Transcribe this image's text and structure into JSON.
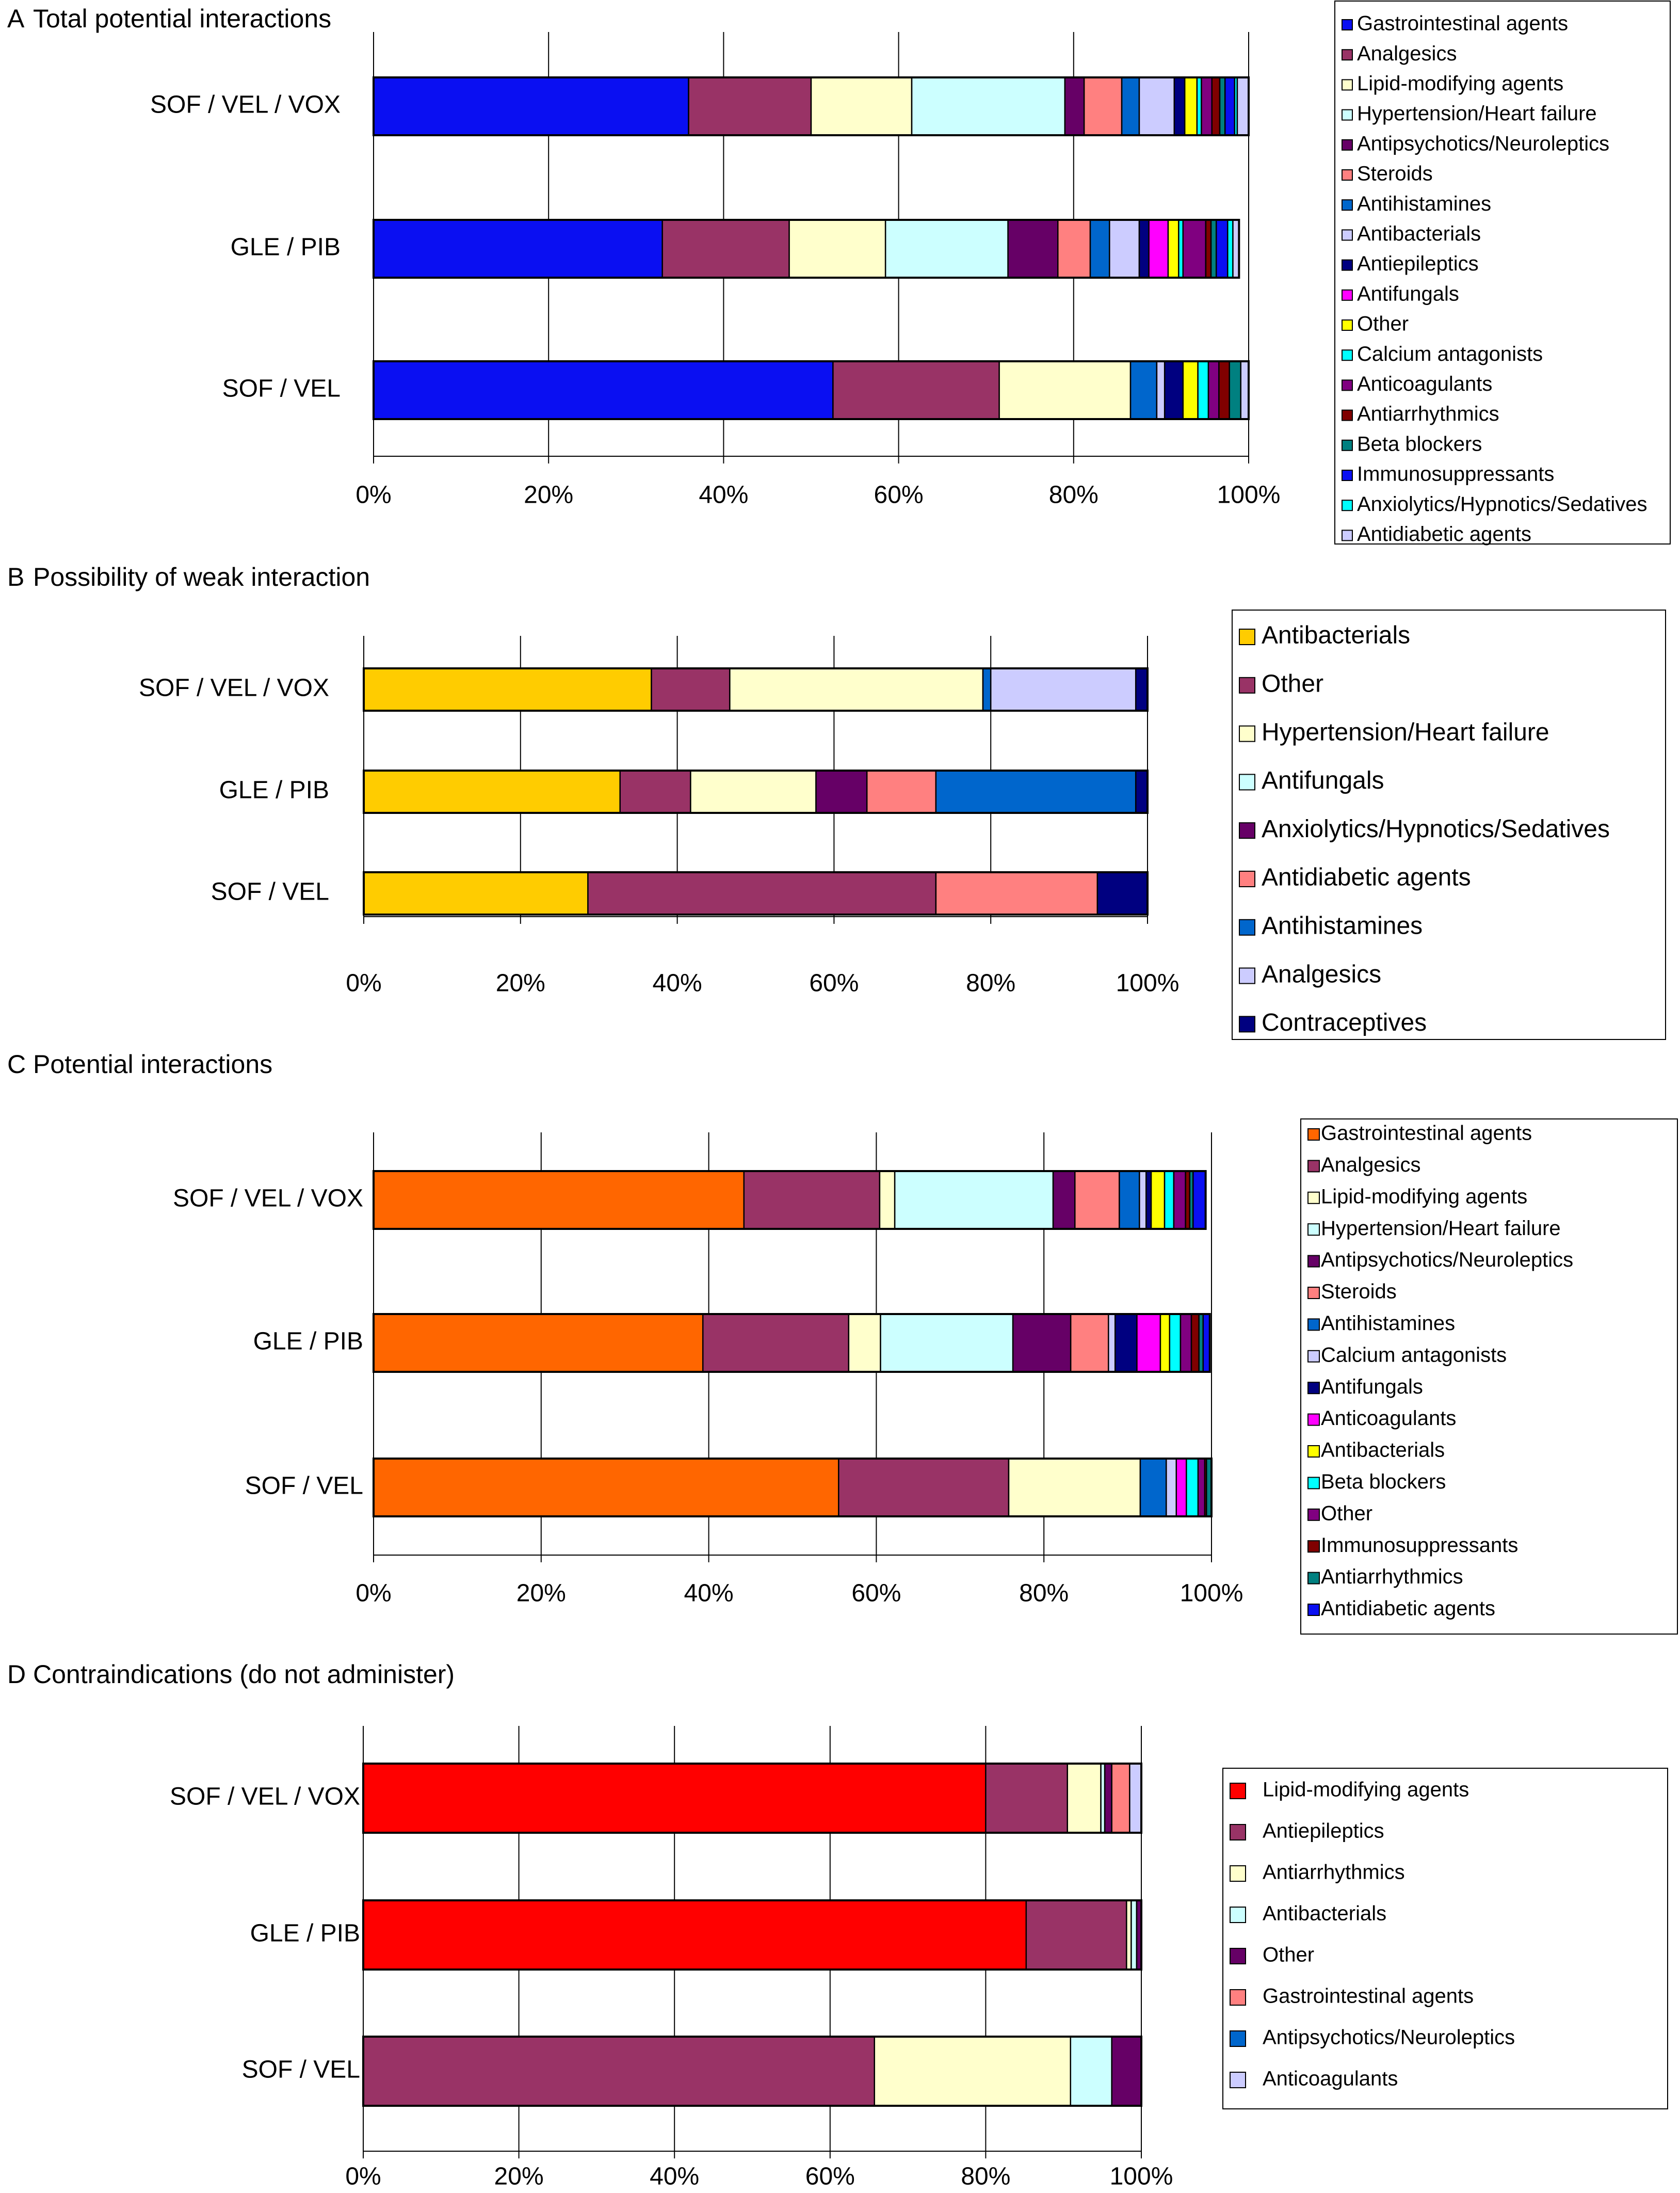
{
  "colors": {
    "blue": "#0a0ff2",
    "maroon": "#993366",
    "cream": "#ffffcc",
    "ltcyan": "#ccffff",
    "purple": "#660066",
    "salmon": "#ff8080",
    "medblue": "#0066cc",
    "lavender": "#ccccff",
    "navy": "#000080",
    "magenta": "#ff00ff",
    "yellow": "#ffff00",
    "cyan": "#00ffff",
    "plum": "#800080",
    "darkred": "#800000",
    "teal": "#008080",
    "gold": "#ffcc00",
    "orange": "#ff6600",
    "red": "#ff0000"
  },
  "chart_data": [
    {
      "panel_letter": "A",
      "title": "Total potential interactions",
      "type": "bar",
      "stacked": true,
      "orientation": "horizontal",
      "xlim": [
        0,
        100
      ],
      "xticks": [
        "0%",
        "20%",
        "40%",
        "60%",
        "80%",
        "100%"
      ],
      "categories": [
        "SOF / VEL / VOX",
        "GLE / PIB",
        "SOF / VEL"
      ],
      "legend": [
        {
          "label": "Gastrointestinal agents",
          "color": "blue"
        },
        {
          "label": "Analgesics",
          "color": "maroon"
        },
        {
          "label": "Lipid-modifying agents",
          "color": "cream"
        },
        {
          "label": "Hypertension/Heart failure",
          "color": "ltcyan"
        },
        {
          "label": "Antipsychotics/Neuroleptics",
          "color": "purple"
        },
        {
          "label": "Steroids",
          "color": "salmon"
        },
        {
          "label": "Antihistamines",
          "color": "medblue"
        },
        {
          "label": "Antibacterials",
          "color": "lavender"
        },
        {
          "label": "Antiepileptics",
          "color": "navy"
        },
        {
          "label": "Antifungals",
          "color": "magenta"
        },
        {
          "label": "Other",
          "color": "yellow"
        },
        {
          "label": "Calcium antagonists",
          "color": "cyan"
        },
        {
          "label": "Anticoagulants",
          "color": "plum"
        },
        {
          "label": "Antiarrhythmics",
          "color": "darkred"
        },
        {
          "label": "Beta blockers",
          "color": "teal"
        },
        {
          "label": "Immunosuppressants",
          "color": "blue"
        },
        {
          "label": "Anxiolytics/Hypnotics/Sedatives",
          "color": "cyan"
        },
        {
          "label": "Antidiabetic agents",
          "color": "lavender"
        }
      ],
      "series": [
        {
          "name": "Gastrointestinal agents",
          "color": "blue",
          "values": [
            36,
            33,
            52.5
          ]
        },
        {
          "name": "Analgesics",
          "color": "maroon",
          "values": [
            14,
            14.5,
            19
          ]
        },
        {
          "name": "Lipid-modifying agents",
          "color": "cream",
          "values": [
            11.5,
            11,
            15
          ]
        },
        {
          "name": "Hypertension/Heart failure",
          "color": "ltcyan",
          "values": [
            17.5,
            14,
            0
          ]
        },
        {
          "name": "Antipsychotics/Neuroleptics",
          "color": "purple",
          "values": [
            2.2,
            5.7,
            0
          ]
        },
        {
          "name": "Steroids",
          "color": "salmon",
          "values": [
            4.3,
            3.7,
            0
          ]
        },
        {
          "name": "Antihistamines",
          "color": "medblue",
          "values": [
            2,
            2.2,
            3
          ]
        },
        {
          "name": "Antibacterials",
          "color": "lavender",
          "values": [
            4,
            3.4,
            0.9
          ]
        },
        {
          "name": "Antiepileptics",
          "color": "navy",
          "values": [
            1.2,
            1.1,
            2.1
          ]
        },
        {
          "name": "Antifungals",
          "color": "magenta",
          "values": [
            0,
            2.2,
            0
          ]
        },
        {
          "name": "Other",
          "color": "yellow",
          "values": [
            1.4,
            1.2,
            1.7
          ]
        },
        {
          "name": "Calcium antagonists",
          "color": "cyan",
          "values": [
            0.5,
            0.5,
            1.2
          ]
        },
        {
          "name": "Anticoagulants",
          "color": "plum",
          "values": [
            1.2,
            2.6,
            1.2
          ]
        },
        {
          "name": "Antiarrhythmics",
          "color": "darkred",
          "values": [
            0.9,
            0.6,
            1.2
          ]
        },
        {
          "name": "Beta blockers",
          "color": "teal",
          "values": [
            0.6,
            0.6,
            1.3
          ]
        },
        {
          "name": "Immunosuppressants",
          "color": "blue",
          "values": [
            1.1,
            1.3,
            0
          ]
        },
        {
          "name": "Anxiolytics/Hypnotics/Sedatives",
          "color": "cyan",
          "values": [
            0.3,
            0.6,
            0
          ]
        },
        {
          "name": "Antidiabetic agents",
          "color": "lavender",
          "values": [
            1.3,
            0.7,
            0.9
          ]
        }
      ]
    },
    {
      "panel_letter": "B",
      "title": "Possibility of weak interaction",
      "type": "bar",
      "stacked": true,
      "orientation": "horizontal",
      "xlim": [
        0,
        100
      ],
      "xticks": [
        "0%",
        "20%",
        "40%",
        "60%",
        "80%",
        "100%"
      ],
      "categories": [
        "SOF / VEL / VOX",
        "GLE / PIB",
        "SOF / VEL"
      ],
      "legend": [
        {
          "label": "Antibacterials",
          "color": "gold"
        },
        {
          "label": "Other",
          "color": "maroon"
        },
        {
          "label": "Hypertension/Heart failure",
          "color": "cream"
        },
        {
          "label": "Antifungals",
          "color": "ltcyan"
        },
        {
          "label": "Anxiolytics/Hypnotics/Sedatives",
          "color": "purple"
        },
        {
          "label": "Antidiabetic agents",
          "color": "salmon"
        },
        {
          "label": "Antihistamines",
          "color": "medblue"
        },
        {
          "label": "Analgesics",
          "color": "lavender"
        },
        {
          "label": "Contraceptives",
          "color": "navy"
        }
      ],
      "series": [
        {
          "name": "Antibacterials",
          "color": "gold",
          "values": [
            36.7,
            32.7,
            28.6
          ]
        },
        {
          "name": "Other",
          "color": "maroon",
          "values": [
            10,
            9,
            44.4
          ]
        },
        {
          "name": "Hypertension/Heart failure",
          "color": "cream",
          "values": [
            32.3,
            16,
            0
          ]
        },
        {
          "name": "Antifungals",
          "color": "ltcyan",
          "values": [
            0,
            0,
            0
          ]
        },
        {
          "name": "Anxiolytics/Hypnotics/Sedatives",
          "color": "purple",
          "values": [
            0,
            6.5,
            0
          ]
        },
        {
          "name": "Antidiabetic agents",
          "color": "salmon",
          "values": [
            0,
            8.8,
            20.6
          ]
        },
        {
          "name": "Antihistamines",
          "color": "medblue",
          "values": [
            1,
            25.5,
            0
          ]
        },
        {
          "name": "Analgesics",
          "color": "lavender",
          "values": [
            18.5,
            0,
            0
          ]
        },
        {
          "name": "Contraceptives",
          "color": "navy",
          "values": [
            1.5,
            1.5,
            6.4
          ]
        }
      ]
    },
    {
      "panel_letter": "C",
      "title": "Potential interactions",
      "type": "bar",
      "stacked": true,
      "orientation": "horizontal",
      "xlim": [
        0,
        100
      ],
      "xticks": [
        "0%",
        "20%",
        "40%",
        "60%",
        "80%",
        "100%"
      ],
      "categories": [
        "SOF / VEL / VOX",
        "GLE / PIB",
        "SOF / VEL"
      ],
      "legend": [
        {
          "label": "Gastrointestinal agents",
          "color": "orange"
        },
        {
          "label": "Analgesics",
          "color": "maroon"
        },
        {
          "label": "Lipid-modifying agents",
          "color": "cream"
        },
        {
          "label": "Hypertension/Heart failure",
          "color": "ltcyan"
        },
        {
          "label": "Antipsychotics/Neuroleptics",
          "color": "purple"
        },
        {
          "label": "Steroids",
          "color": "salmon"
        },
        {
          "label": "Antihistamines",
          "color": "medblue"
        },
        {
          "label": "Calcium antagonists",
          "color": "lavender"
        },
        {
          "label": "Antifungals",
          "color": "navy"
        },
        {
          "label": "Anticoagulants",
          "color": "magenta"
        },
        {
          "label": "Antibacterials",
          "color": "yellow"
        },
        {
          "label": "Beta blockers",
          "color": "cyan"
        },
        {
          "label": "Other",
          "color": "plum"
        },
        {
          "label": "Immunosuppressants",
          "color": "darkred"
        },
        {
          "label": "Antiarrhythmics",
          "color": "teal"
        },
        {
          "label": "Antidiabetic agents",
          "color": "blue"
        }
      ],
      "series": [
        {
          "name": "Gastrointestinal agents",
          "color": "orange",
          "values": [
            44.2,
            39.3,
            55.5
          ]
        },
        {
          "name": "Analgesics",
          "color": "maroon",
          "values": [
            16.2,
            17.4,
            20.3
          ]
        },
        {
          "name": "Lipid-modifying agents",
          "color": "cream",
          "values": [
            1.8,
            3.8,
            15.7
          ]
        },
        {
          "name": "Hypertension/Heart failure",
          "color": "ltcyan",
          "values": [
            18.9,
            15.8,
            0
          ]
        },
        {
          "name": "Antipsychotics/Neuroleptics",
          "color": "purple",
          "values": [
            2.6,
            6.9,
            0
          ]
        },
        {
          "name": "Steroids",
          "color": "salmon",
          "values": [
            5.3,
            4.5,
            0
          ]
        },
        {
          "name": "Antihistamines",
          "color": "medblue",
          "values": [
            2.4,
            0,
            3.1
          ]
        },
        {
          "name": "Calcium antagonists",
          "color": "lavender",
          "values": [
            0.8,
            0.8,
            1.2
          ]
        },
        {
          "name": "Antifungals",
          "color": "navy",
          "values": [
            0.6,
            2.6,
            0
          ]
        },
        {
          "name": "Anticoagulants",
          "color": "magenta",
          "values": [
            0,
            2.8,
            1.2
          ]
        },
        {
          "name": "Antibacterials",
          "color": "yellow",
          "values": [
            1.6,
            1.1,
            0
          ]
        },
        {
          "name": "Beta blockers",
          "color": "cyan",
          "values": [
            1.1,
            1.3,
            1.4
          ]
        },
        {
          "name": "Other",
          "color": "plum",
          "values": [
            1.4,
            1.3,
            0.8
          ]
        },
        {
          "name": "Immunosuppressants",
          "color": "darkred",
          "values": [
            0.5,
            0.9,
            0.2
          ]
        },
        {
          "name": "Antiarrhythmics",
          "color": "teal",
          "values": [
            0.4,
            0.5,
            0.6
          ]
        },
        {
          "name": "Antidiabetic agents",
          "color": "blue",
          "values": [
            1.5,
            0.8,
            0
          ]
        }
      ]
    },
    {
      "panel_letter": "D",
      "title": "Contraindications (do not administer)",
      "type": "bar",
      "stacked": true,
      "orientation": "horizontal",
      "xlim": [
        0,
        100
      ],
      "xticks": [
        "0%",
        "20%",
        "40%",
        "60%",
        "80%",
        "100%"
      ],
      "categories": [
        "SOF / VEL / VOX",
        "GLE / PIB",
        "SOF / VEL"
      ],
      "legend": [
        {
          "label": "Lipid-modifying agents",
          "color": "red"
        },
        {
          "label": "Antiepileptics",
          "color": "maroon"
        },
        {
          "label": "Antiarrhythmics",
          "color": "cream"
        },
        {
          "label": "Antibacterials",
          "color": "ltcyan"
        },
        {
          "label": "Other",
          "color": "purple"
        },
        {
          "label": "Gastrointestinal agents",
          "color": "salmon"
        },
        {
          "label": "Antipsychotics/Neuroleptics",
          "color": "medblue"
        },
        {
          "label": "Anticoagulants",
          "color": "lavender"
        }
      ],
      "series": [
        {
          "name": "Lipid-modifying agents",
          "color": "red",
          "values": [
            80,
            85.2,
            0
          ]
        },
        {
          "name": "Antiepileptics",
          "color": "maroon",
          "values": [
            10.5,
            12.9,
            65.7
          ]
        },
        {
          "name": "Antiarrhythmics",
          "color": "cream",
          "values": [
            4.3,
            0.6,
            25.2
          ]
        },
        {
          "name": "Antibacterials",
          "color": "ltcyan",
          "values": [
            0.5,
            0.7,
            5.3
          ]
        },
        {
          "name": "Other",
          "color": "purple",
          "values": [
            0.9,
            0.6,
            3.8
          ]
        },
        {
          "name": "Gastrointestinal agents",
          "color": "salmon",
          "values": [
            2.3,
            0,
            0
          ]
        },
        {
          "name": "Antipsychotics/Neuroleptics",
          "color": "medblue",
          "values": [
            0,
            0,
            0
          ]
        },
        {
          "name": "Anticoagulants",
          "color": "lavender",
          "values": [
            1.5,
            0,
            0
          ]
        }
      ]
    }
  ]
}
